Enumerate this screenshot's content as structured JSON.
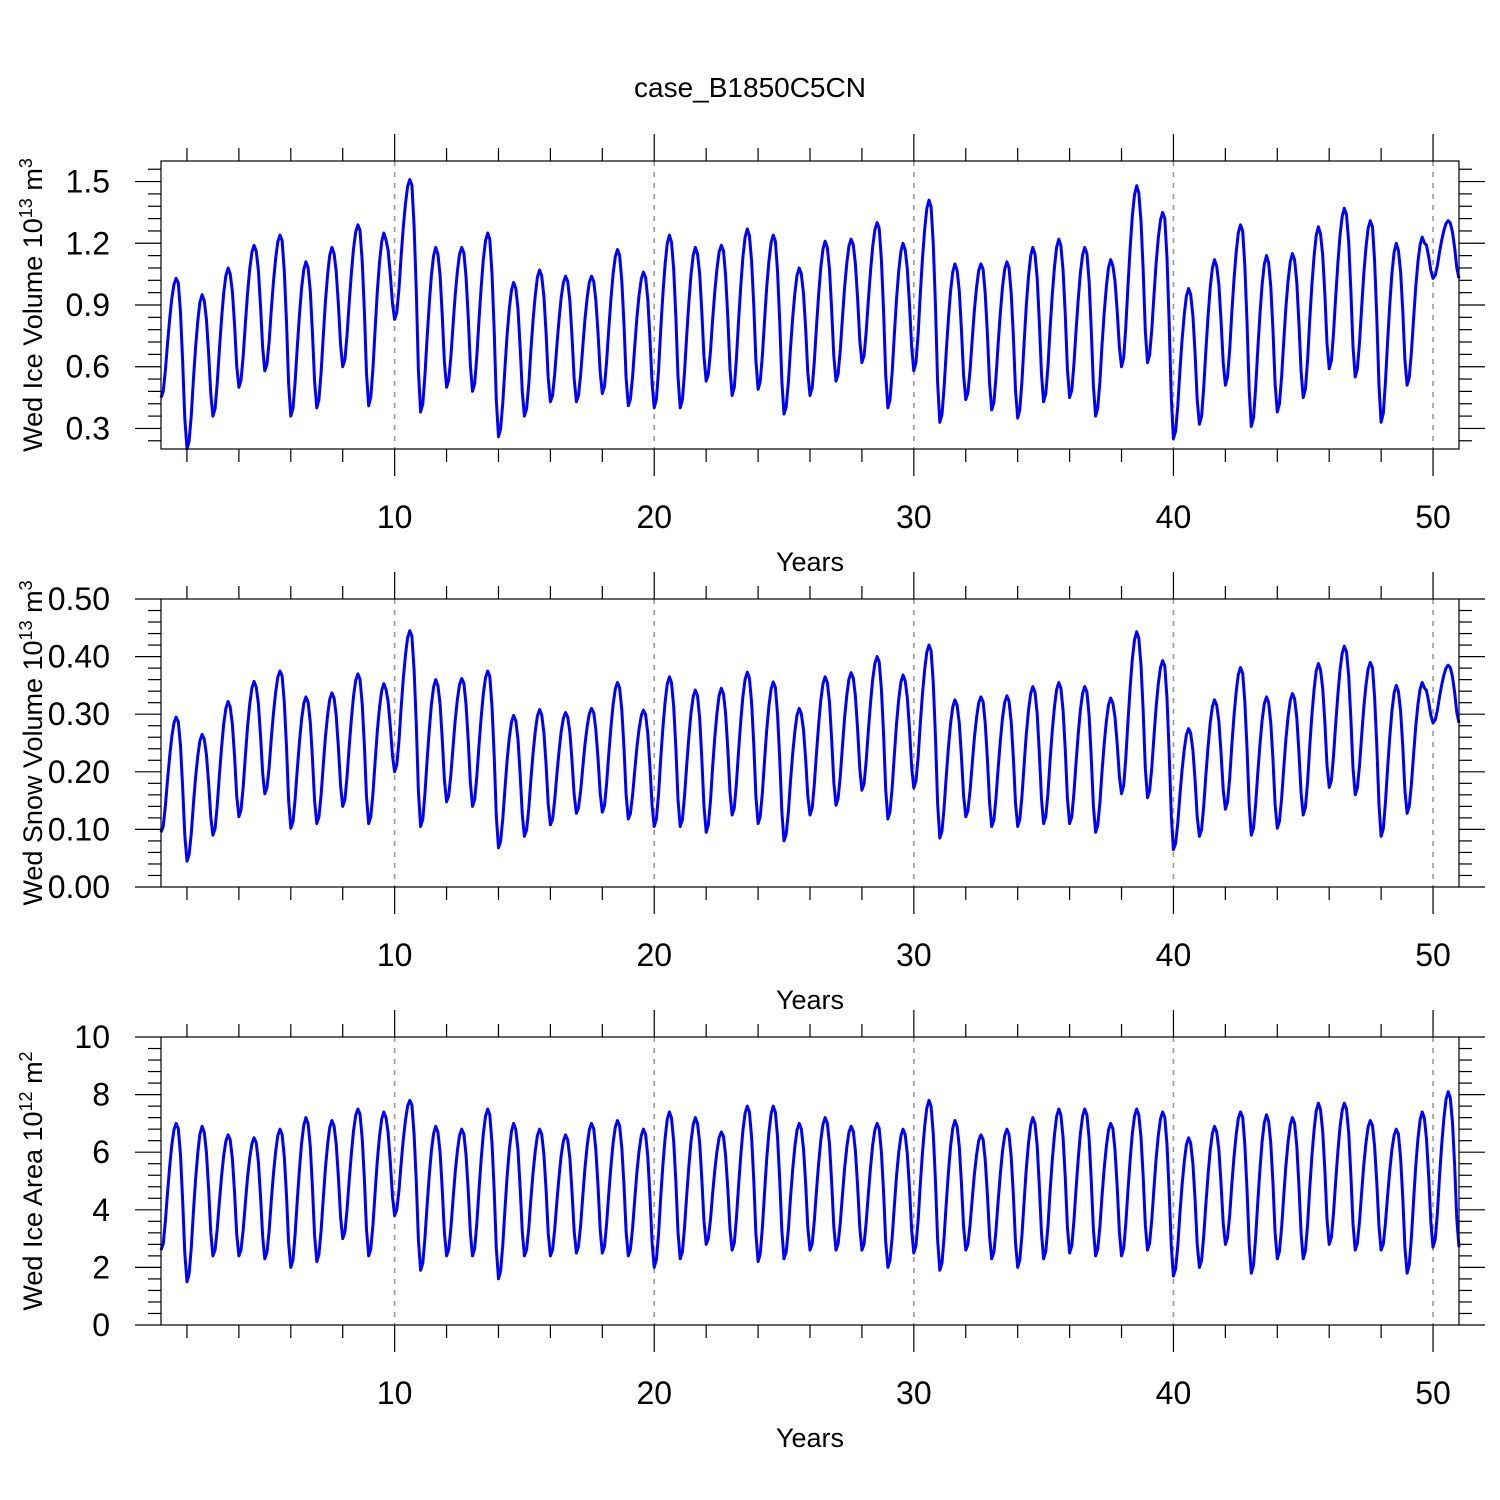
{
  "title": "case_B1850C5CN",
  "colors": {
    "series": "#0000ff",
    "grid": "#999999",
    "frame": "#000000"
  },
  "chart_data": [
    {
      "type": "line",
      "title": "case_B1850C5CN",
      "xlabel": "Years",
      "ylabel_main": "Wed Ice Volume 10",
      "ylabel_exp": "13",
      "ylabel_unit": " m",
      "ylabel_unit_exp": "3",
      "xlim": [
        1,
        51
      ],
      "ylim": [
        0.2,
        1.6
      ],
      "x_ticks": [
        10,
        20,
        30,
        40,
        50
      ],
      "x_tick_labels": [
        "10",
        "20",
        "30",
        "40",
        "50"
      ],
      "y_ticks": [
        0.3,
        0.6,
        0.9,
        1.2,
        1.5
      ],
      "y_tick_labels": [
        "0.3",
        "0.6",
        "0.9",
        "1.2",
        "1.5"
      ],
      "grid": "vertical dashed at major x ticks",
      "sampling": "monthly, one annual cycle per year starting year 1",
      "series": [
        {
          "color": "#0000ff",
          "annual_max": [
            1.03,
            0.95,
            1.08,
            1.19,
            1.24,
            1.11,
            1.18,
            1.29,
            1.25,
            1.51,
            1.18,
            1.18,
            1.25,
            1.01,
            1.07,
            1.04,
            1.04,
            1.17,
            1.06,
            1.24,
            1.18,
            1.19,
            1.27,
            1.24,
            1.08,
            1.21,
            1.22,
            1.3,
            1.2,
            1.41,
            1.1,
            1.1,
            1.11,
            1.18,
            1.22,
            1.18,
            1.12,
            1.48,
            1.35,
            0.98,
            1.12,
            1.29,
            1.14,
            1.15,
            1.28,
            1.37,
            1.31,
            1.2,
            1.23,
            1.31
          ],
          "annual_min": [
            0.45,
            0.2,
            0.36,
            0.5,
            0.58,
            0.36,
            0.4,
            0.6,
            0.41,
            0.83,
            0.38,
            0.5,
            0.48,
            0.26,
            0.36,
            0.43,
            0.43,
            0.47,
            0.41,
            0.4,
            0.4,
            0.53,
            0.46,
            0.49,
            0.37,
            0.46,
            0.53,
            0.62,
            0.4,
            0.58,
            0.33,
            0.44,
            0.39,
            0.35,
            0.43,
            0.45,
            0.36,
            0.6,
            0.62,
            0.25,
            0.32,
            0.51,
            0.31,
            0.38,
            0.45,
            0.59,
            0.55,
            0.33,
            0.51,
            1.03
          ]
        }
      ]
    },
    {
      "type": "line",
      "xlabel": "Years",
      "ylabel_main": "Wed Snow Volume 10",
      "ylabel_exp": "13",
      "ylabel_unit": " m",
      "ylabel_unit_exp": "3",
      "xlim": [
        1,
        51
      ],
      "ylim": [
        0.0,
        0.5
      ],
      "x_ticks": [
        10,
        20,
        30,
        40,
        50
      ],
      "x_tick_labels": [
        "10",
        "20",
        "30",
        "40",
        "50"
      ],
      "y_ticks": [
        0.0,
        0.1,
        0.2,
        0.3,
        0.4,
        0.5
      ],
      "y_tick_labels": [
        "0.00",
        "0.10",
        "0.20",
        "0.30",
        "0.40",
        "0.50"
      ],
      "grid": "vertical dashed at major x ticks",
      "sampling": "monthly, one annual cycle per year starting year 1",
      "series": [
        {
          "color": "#0000ff",
          "annual_max": [
            0.295,
            0.265,
            0.322,
            0.357,
            0.375,
            0.33,
            0.337,
            0.37,
            0.353,
            0.445,
            0.36,
            0.362,
            0.375,
            0.298,
            0.308,
            0.303,
            0.31,
            0.355,
            0.307,
            0.365,
            0.342,
            0.345,
            0.373,
            0.356,
            0.31,
            0.365,
            0.372,
            0.4,
            0.368,
            0.42,
            0.325,
            0.33,
            0.332,
            0.348,
            0.355,
            0.348,
            0.328,
            0.443,
            0.393,
            0.275,
            0.325,
            0.381,
            0.33,
            0.336,
            0.388,
            0.418,
            0.39,
            0.35,
            0.355,
            0.385
          ],
          "annual_min": [
            0.095,
            0.045,
            0.09,
            0.122,
            0.162,
            0.102,
            0.11,
            0.14,
            0.11,
            0.2,
            0.105,
            0.148,
            0.14,
            0.068,
            0.088,
            0.108,
            0.128,
            0.13,
            0.118,
            0.105,
            0.105,
            0.095,
            0.125,
            0.11,
            0.08,
            0.125,
            0.142,
            0.168,
            0.118,
            0.172,
            0.085,
            0.122,
            0.105,
            0.105,
            0.11,
            0.11,
            0.095,
            0.162,
            0.155,
            0.065,
            0.088,
            0.135,
            0.09,
            0.102,
            0.125,
            0.173,
            0.16,
            0.088,
            0.128,
            0.285
          ]
        }
      ]
    },
    {
      "type": "line",
      "xlabel": "Years",
      "ylabel_main": "Wed Ice Area 10",
      "ylabel_exp": "12",
      "ylabel_unit": " m",
      "ylabel_unit_exp": "2",
      "xlim": [
        1,
        51
      ],
      "ylim": [
        0,
        10
      ],
      "x_ticks": [
        10,
        20,
        30,
        40,
        50
      ],
      "x_tick_labels": [
        "10",
        "20",
        "30",
        "40",
        "50"
      ],
      "y_ticks": [
        0,
        2,
        4,
        6,
        8,
        10
      ],
      "y_tick_labels": [
        "0",
        "2",
        "4",
        "6",
        "8",
        "10"
      ],
      "grid": "vertical dashed at major x ticks",
      "sampling": "monthly, one annual cycle per year starting year 1",
      "series": [
        {
          "color": "#0000ff",
          "annual_max": [
            7.0,
            6.9,
            6.6,
            6.5,
            6.8,
            7.2,
            7.1,
            7.5,
            7.4,
            7.8,
            6.9,
            6.8,
            7.5,
            7.0,
            6.8,
            6.6,
            7.0,
            7.1,
            6.8,
            7.4,
            7.2,
            6.7,
            7.6,
            7.6,
            7.0,
            7.2,
            6.9,
            7.0,
            6.8,
            7.8,
            7.1,
            6.6,
            6.8,
            7.2,
            7.5,
            7.5,
            7.0,
            7.5,
            7.4,
            6.5,
            6.9,
            7.4,
            7.3,
            7.2,
            7.7,
            7.7,
            7.1,
            6.8,
            7.4,
            8.1
          ],
          "annual_min": [
            2.6,
            1.5,
            2.4,
            2.4,
            2.3,
            2.0,
            2.2,
            3.0,
            2.4,
            3.8,
            1.9,
            2.4,
            2.4,
            1.6,
            2.4,
            2.4,
            2.5,
            2.5,
            2.4,
            2.0,
            2.3,
            2.8,
            2.6,
            2.2,
            2.3,
            2.6,
            2.6,
            2.6,
            2.0,
            2.5,
            1.9,
            2.6,
            2.3,
            2.0,
            2.3,
            2.5,
            2.4,
            2.4,
            2.6,
            1.7,
            2.0,
            2.8,
            1.8,
            2.3,
            2.3,
            2.8,
            2.6,
            2.6,
            1.8,
            2.7
          ]
        }
      ]
    }
  ]
}
